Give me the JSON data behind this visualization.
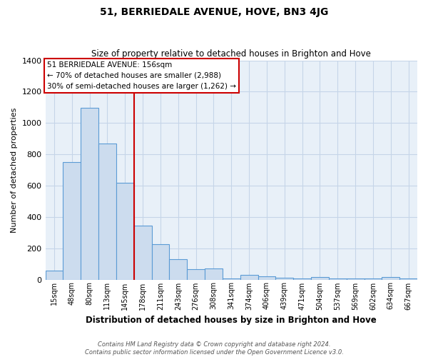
{
  "title": "51, BERRIEDALE AVENUE, HOVE, BN3 4JG",
  "subtitle": "Size of property relative to detached houses in Brighton and Hove",
  "xlabel": "Distribution of detached houses by size in Brighton and Hove",
  "ylabel": "Number of detached properties",
  "categories": [
    "15sqm",
    "48sqm",
    "80sqm",
    "113sqm",
    "145sqm",
    "178sqm",
    "211sqm",
    "243sqm",
    "276sqm",
    "308sqm",
    "341sqm",
    "374sqm",
    "406sqm",
    "439sqm",
    "471sqm",
    "504sqm",
    "537sqm",
    "569sqm",
    "602sqm",
    "634sqm",
    "667sqm"
  ],
  "values": [
    55,
    750,
    1095,
    870,
    620,
    345,
    225,
    130,
    65,
    70,
    5,
    30,
    20,
    10,
    5,
    15,
    5,
    5,
    5,
    15,
    5
  ],
  "bar_color": "#ccdcee",
  "bar_edge_color": "#5b9bd5",
  "vline_x_index": 4,
  "vline_color": "#cc0000",
  "annotation_lines": [
    "51 BERRIEDALE AVENUE: 156sqm",
    "← 70% of detached houses are smaller (2,988)",
    "30% of semi-detached houses are larger (1,262) →"
  ],
  "annotation_box_edgecolor": "#cc0000",
  "footer_line1": "Contains HM Land Registry data © Crown copyright and database right 2024.",
  "footer_line2": "Contains public sector information licensed under the Open Government Licence v3.0.",
  "ylim": [
    0,
    1400
  ],
  "yticks": [
    0,
    200,
    400,
    600,
    800,
    1000,
    1200,
    1400
  ],
  "plot_bg_color": "#e8f0f8",
  "fig_bg_color": "#ffffff",
  "grid_color": "#c5d5e8"
}
